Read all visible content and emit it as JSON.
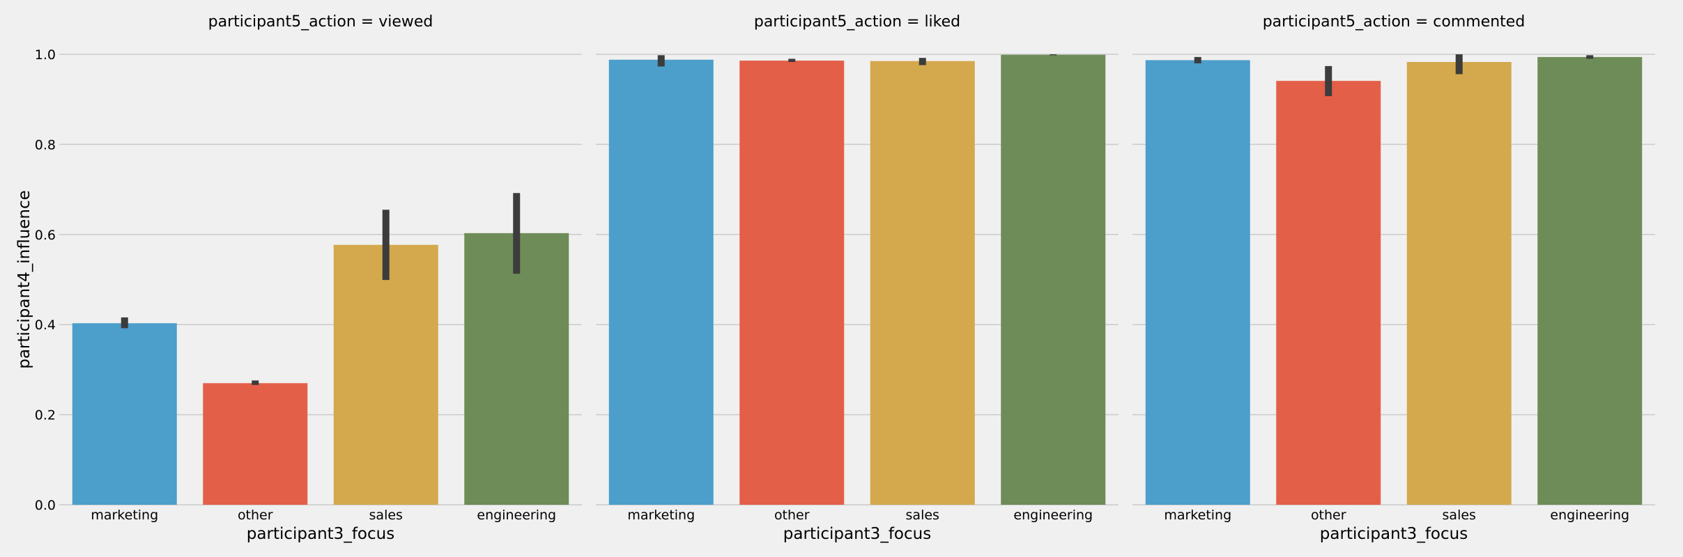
{
  "chart_data": {
    "type": "bar",
    "facet_variable": "participant5_action",
    "xlabel": "participant3_focus",
    "ylabel": "participant4_influence",
    "categories": [
      "marketing",
      "other",
      "sales",
      "engineering"
    ],
    "ylim": [
      0,
      1.0
    ],
    "yticks": [
      "0.0",
      "0.2",
      "0.4",
      "0.6",
      "0.8",
      "1.0"
    ],
    "grid": true,
    "error_bars": true,
    "colors": [
      "#4c9ecb",
      "#e45f48",
      "#d4a84d",
      "#6e8c57"
    ],
    "panels": [
      {
        "title": "participant5_action = viewed",
        "values": [
          0.403,
          0.27,
          0.577,
          0.603
        ],
        "error_low": [
          0.392,
          0.266,
          0.499,
          0.513
        ],
        "error_high": [
          0.416,
          0.276,
          0.655,
          0.692
        ]
      },
      {
        "title": "participant5_action = liked",
        "values": [
          0.988,
          0.986,
          0.985,
          0.999
        ],
        "error_low": [
          0.973,
          0.983,
          0.976,
          0.998
        ],
        "error_high": [
          0.998,
          0.99,
          0.992,
          1.0
        ]
      },
      {
        "title": "participant5_action = commented",
        "values": [
          0.987,
          0.941,
          0.983,
          0.994
        ],
        "error_low": [
          0.98,
          0.907,
          0.956,
          0.99
        ],
        "error_high": [
          0.994,
          0.974,
          1.0,
          0.998
        ]
      }
    ]
  }
}
